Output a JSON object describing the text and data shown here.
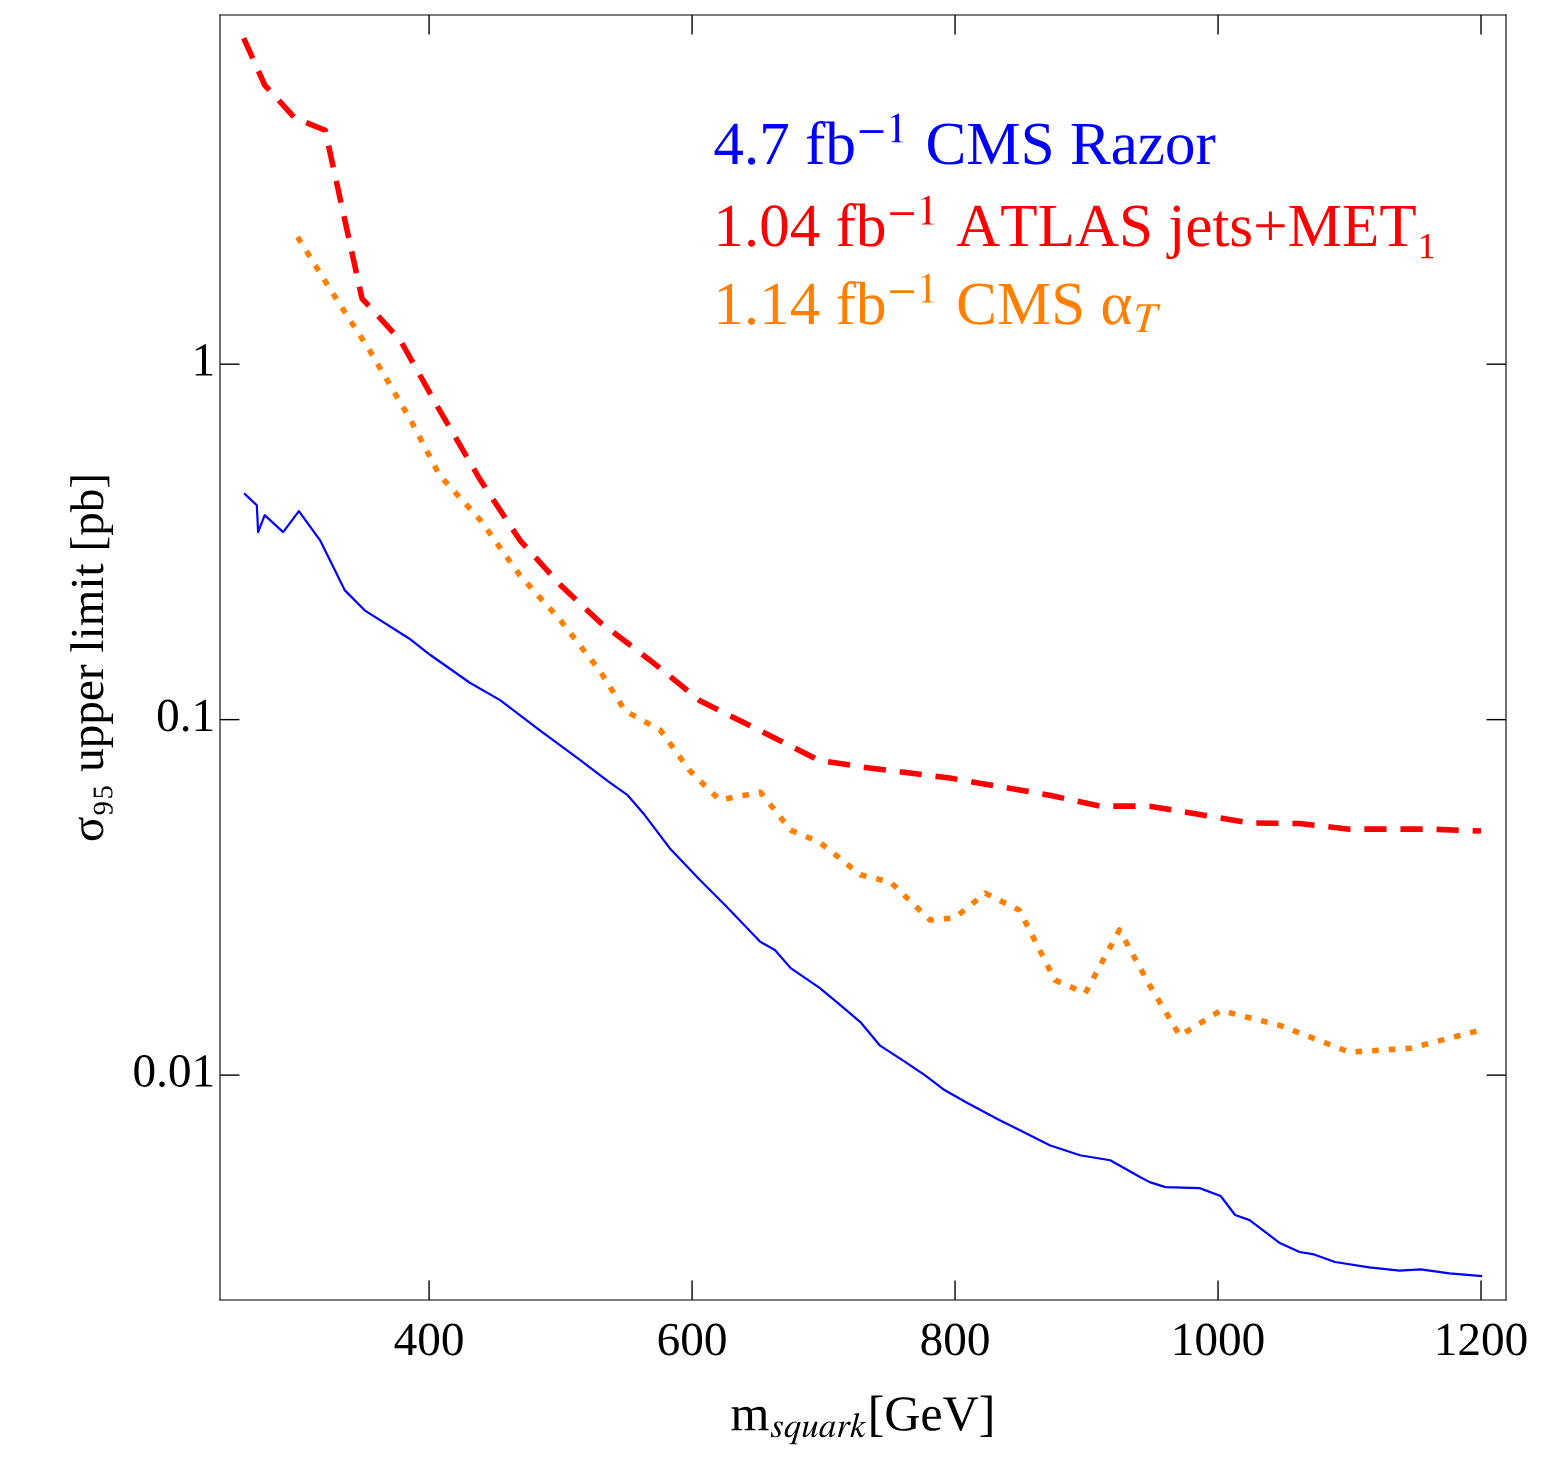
{
  "chart_data": {
    "type": "line",
    "log": "y",
    "xlabel": "m$_{squark}$[GeV]",
    "ylabel": "σ₉₅ upper limit [pb]",
    "xlim": [
      241,
      1219
    ],
    "xticks": [
      400,
      600,
      800,
      1000,
      1200
    ],
    "ylim": [
      0.00233,
      9.6
    ],
    "yticks": [
      0.01,
      0.1,
      1
    ],
    "grid": false,
    "legend": "top right",
    "series": [
      {
        "name": "4.7 fb$^{−1}$ CMS Razor",
        "color": "#0000ff",
        "line_style": "solid",
        "x": [
          260,
          269,
          270,
          275,
          289,
          301,
          317,
          336,
          351,
          386,
          401,
          431,
          454,
          484,
          515,
          537,
          551,
          564,
          583,
          606,
          625,
          636,
          652,
          663,
          675,
          697,
          713,
          728,
          743,
          762,
          777,
          792,
          808,
          834,
          872,
          895,
          918,
          941,
          948,
          960,
          986,
          1002,
          1013,
          1024,
          1047,
          1062,
          1073,
          1089,
          1115,
          1138,
          1154,
          1176,
          1200
        ],
        "values": [
          0.431,
          0.401,
          0.337,
          0.376,
          0.337,
          0.386,
          0.32,
          0.231,
          0.203,
          0.168,
          0.152,
          0.127,
          0.1135,
          0.0934,
          0.0769,
          0.0667,
          0.0613,
          0.0539,
          0.0435,
          0.0354,
          0.0301,
          0.0273,
          0.0237,
          0.0225,
          0.02,
          0.0176,
          0.0157,
          0.0141,
          0.0121,
          0.0109,
          0.01,
          0.00908,
          0.0084,
          0.00747,
          0.00635,
          0.00595,
          0.00576,
          0.00516,
          0.005,
          0.00484,
          0.00481,
          0.00457,
          0.00404,
          0.00391,
          0.00337,
          0.00318,
          0.00313,
          0.00298,
          0.00288,
          0.00282,
          0.00284,
          0.00277,
          0.00272
        ]
      },
      {
        "name": "1.04 fb$^{−1}$ ATLAS jets+MET₁",
        "color": "#ff0000",
        "line_style": "dashed",
        "x": [
          259,
          275,
          298,
          321,
          349,
          378,
          408,
          439,
          469,
          500,
          530,
          568,
          606,
          652,
          697,
          735,
          796,
          872,
          910,
          948,
          1024,
          1062,
          1100,
          1161,
          1200
        ],
        "values": [
          8.26,
          6.1,
          4.92,
          4.55,
          1.53,
          1.17,
          0.742,
          0.472,
          0.32,
          0.239,
          0.188,
          0.147,
          0.113,
          0.093,
          0.0767,
          0.0731,
          0.0685,
          0.0613,
          0.0571,
          0.0571,
          0.0512,
          0.051,
          0.0492,
          0.0492,
          0.0486
        ]
      },
      {
        "name": "1.14 fb$^{−1}$ CMS α$_{T}$",
        "color": "#ff8000",
        "line_style": "dotted",
        "x": [
          300,
          325,
          355,
          386,
          408,
          439,
          469,
          500,
          530,
          549,
          576,
          598,
          621,
          652,
          675,
          697,
          728,
          751,
          781,
          800,
          823,
          849,
          876,
          899,
          925,
          948,
          971,
          1002,
          1047,
          1100,
          1146,
          1200
        ],
        "values": [
          2.28,
          1.62,
          1.09,
          0.696,
          0.487,
          0.364,
          0.255,
          0.19,
          0.137,
          0.106,
          0.0933,
          0.072,
          0.0594,
          0.0625,
          0.0489,
          0.0452,
          0.0366,
          0.0349,
          0.0273,
          0.0277,
          0.0325,
          0.0291,
          0.0185,
          0.017,
          0.0256,
          0.0179,
          0.0129,
          0.0152,
          0.0138,
          0.0116,
          0.0119,
          0.0134
        ]
      }
    ]
  }
}
